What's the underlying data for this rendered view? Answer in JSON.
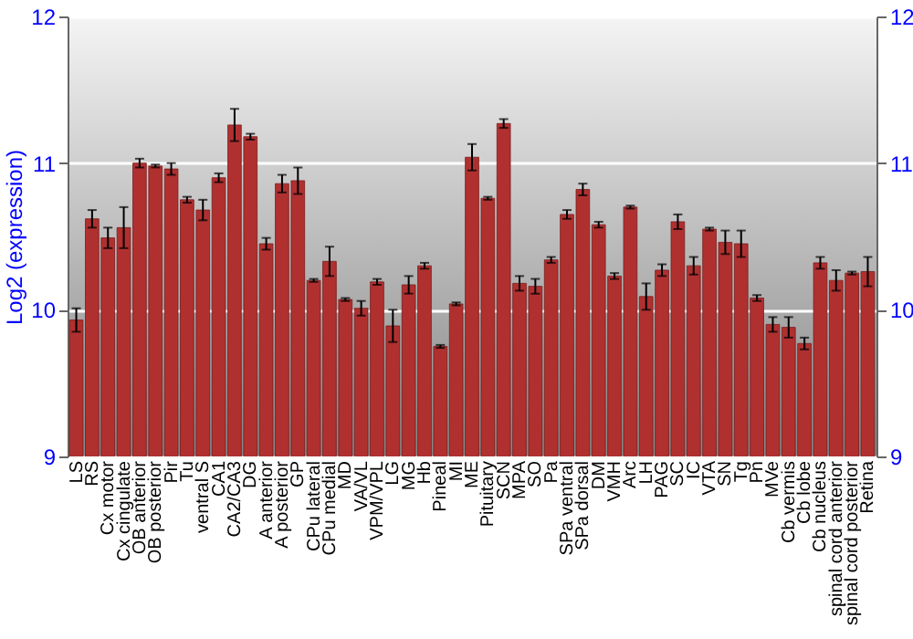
{
  "chart_data": {
    "type": "bar",
    "ylabel": "Log2 (expression)",
    "categories": [
      "LS",
      "RS",
      "Cx motor",
      "Cx cingulate",
      "OB anterior",
      "OB posterior",
      "Pir",
      "Tu",
      "ventral S",
      "CA1",
      "CA2/CA3",
      "DG",
      "A anterior",
      "A posterior",
      "GP",
      "CPu lateral",
      "CPu medial",
      "MD",
      "VA/VL",
      "VPM/VPL",
      "LG",
      "MG",
      "Hb",
      "Pineal",
      "MI",
      "ME",
      "Pituitary",
      "SCN",
      "MPA",
      "SO",
      "Pa",
      "SPa ventral",
      "SPa dorsal",
      "DM",
      "VMH",
      "Arc",
      "LH",
      "PAG",
      "SC",
      "IC",
      "VTA",
      "SN",
      "Tg",
      "Pn",
      "MVe",
      "Cb vermis",
      "Cb lobe",
      "Cb nucleus",
      "spinal cord anterior",
      "spinal cord posterior",
      "Retina"
    ],
    "values": [
      9.93,
      10.62,
      10.49,
      10.56,
      11.0,
      10.98,
      10.96,
      10.75,
      10.68,
      10.9,
      11.26,
      11.18,
      10.45,
      10.86,
      10.88,
      10.2,
      10.33,
      10.07,
      10.01,
      10.19,
      9.89,
      10.17,
      10.3,
      9.75,
      10.04,
      11.04,
      10.76,
      11.27,
      10.18,
      10.16,
      10.34,
      10.65,
      10.82,
      10.58,
      10.23,
      10.7,
      10.09,
      10.27,
      10.6,
      10.3,
      10.55,
      10.46,
      10.45,
      10.08,
      9.9,
      9.88,
      9.77,
      10.32,
      10.2,
      10.25,
      10.26
    ],
    "errors": [
      0.08,
      0.06,
      0.07,
      0.14,
      0.03,
      0.01,
      0.04,
      0.02,
      0.07,
      0.03,
      0.11,
      0.02,
      0.04,
      0.06,
      0.09,
      0.01,
      0.1,
      0.01,
      0.05,
      0.02,
      0.11,
      0.06,
      0.02,
      0.01,
      0.01,
      0.09,
      0.01,
      0.03,
      0.05,
      0.05,
      0.02,
      0.03,
      0.04,
      0.02,
      0.02,
      0.01,
      0.09,
      0.04,
      0.05,
      0.06,
      0.01,
      0.08,
      0.09,
      0.02,
      0.05,
      0.07,
      0.04,
      0.04,
      0.07,
      0.01,
      0.1
    ],
    "color": "#b03030",
    "ylim": [
      9,
      12
    ],
    "yticks": [
      9,
      10,
      11,
      12
    ],
    "y2lim": [
      9,
      12
    ],
    "y2ticks": [
      9,
      10,
      11,
      12
    ],
    "grid": "y"
  }
}
